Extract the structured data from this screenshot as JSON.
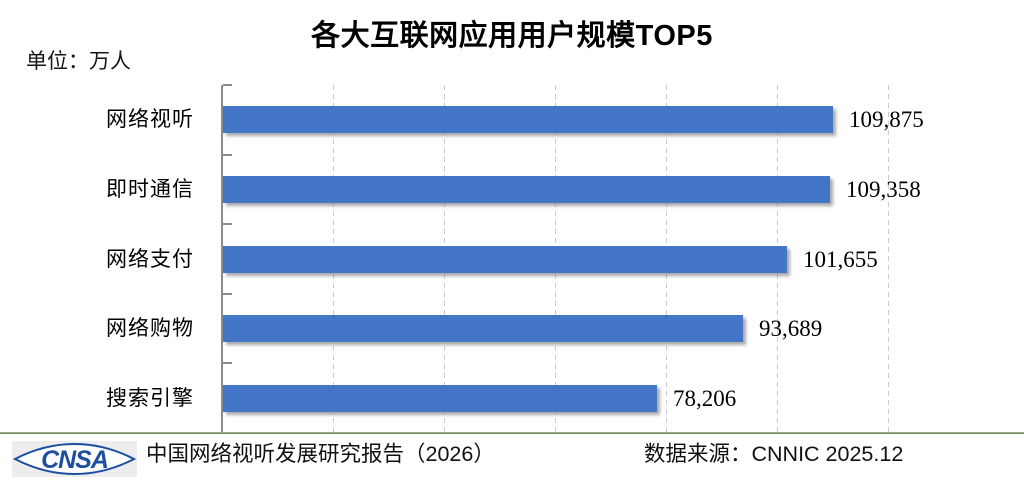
{
  "title": "各大互联网应用用户规模TOP5",
  "unit_label": "单位：万人",
  "chart_data": {
    "type": "bar",
    "orientation": "horizontal",
    "title": "各大互联网应用用户规模TOP5",
    "unit": "万人",
    "categories": [
      "网络视听",
      "即时通信",
      "网络支付",
      "网络购物",
      "搜索引擎"
    ],
    "values": [
      109875,
      109358,
      101655,
      93689,
      78206
    ],
    "value_labels": [
      "109,875",
      "109,358",
      "101,655",
      "93,689",
      "78,206"
    ],
    "xlim": [
      0,
      120000
    ],
    "gridline_step": 20000,
    "grid": "vertical-dashed",
    "legend": "none",
    "bar_color": "#4476C8"
  },
  "footer": {
    "logo_text": "CNSA",
    "report_title": "中国网络视听发展研究报告（2026）",
    "data_source": "数据来源：CNNIC 2025.12"
  },
  "colors": {
    "bar": "#4476C8",
    "axis": "#8c8c8c",
    "gridline": "#cbcbcb",
    "separator_line": "#5f7244",
    "logo_blue": "#1d4fa1"
  }
}
